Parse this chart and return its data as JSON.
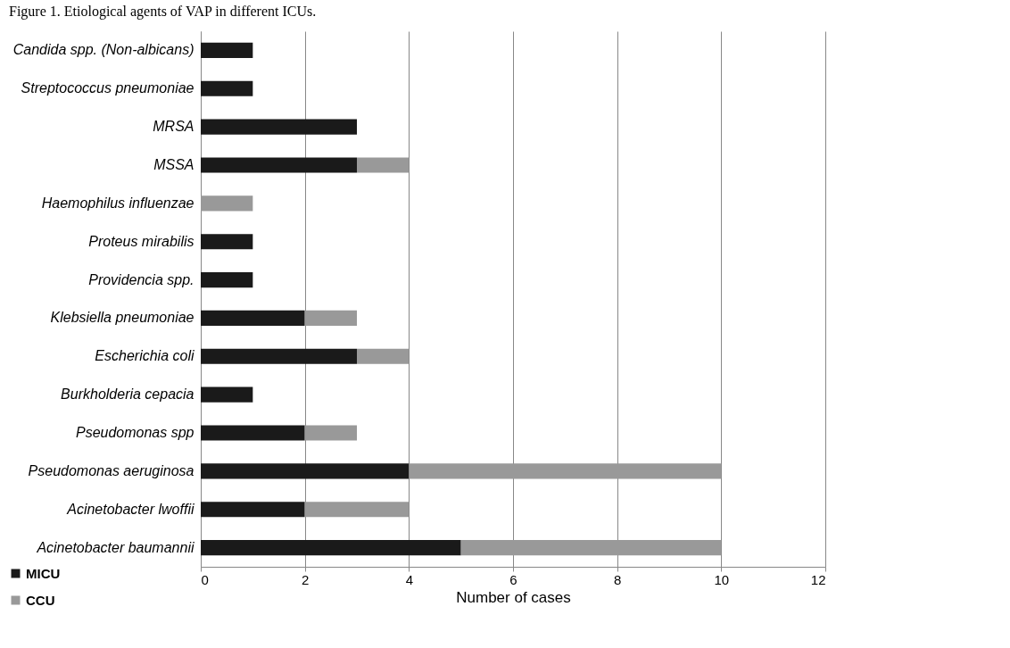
{
  "chart_data": {
    "type": "bar",
    "orientation": "horizontal",
    "stacked": true,
    "title": "Figure 1. Etiological agents of VAP in different ICUs.",
    "xlabel": "Number of cases",
    "categories": [
      "Candida spp. (Non-albicans)",
      "Streptococcus pneumoniae",
      "MRSA",
      "MSSA",
      "Haemophilus influenzae",
      "Proteus mirabilis",
      "Providencia spp.",
      "Klebsiella pneumoniae",
      "Escherichia coli",
      "Burkholderia cepacia",
      "Pseudomonas spp",
      "Pseudomonas aeruginosa",
      "Acinetobacter lwoffii",
      "Acinetobacter baumannii"
    ],
    "series": [
      {
        "name": "MICU",
        "color": "#1a1a1a",
        "values": [
          1,
          1,
          3,
          3,
          0,
          1,
          1,
          2,
          3,
          1,
          2,
          4,
          2,
          5
        ]
      },
      {
        "name": "CCU",
        "color": "#999999",
        "values": [
          0,
          0,
          0,
          1,
          1,
          0,
          0,
          1,
          1,
          0,
          1,
          6,
          2,
          5
        ]
      }
    ],
    "xlim": [
      0,
      12
    ],
    "xticks": [
      0,
      2,
      4,
      6,
      8,
      10,
      12
    ],
    "grid": "x",
    "legend": "bottom left"
  }
}
